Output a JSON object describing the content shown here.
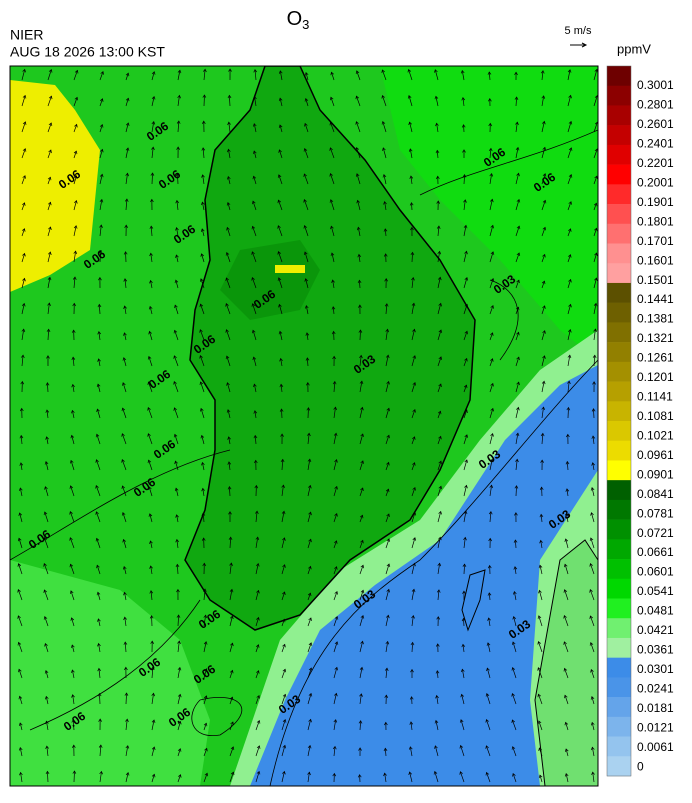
{
  "header": {
    "title": {
      "base": "O",
      "sub": "3"
    },
    "agency": "NIER",
    "datetime": "AUG 18 2026 13:00 KST",
    "wind_scale": "5 m/s",
    "unit": "ppmV"
  },
  "colorbar": [
    {
      "label": "0.3001",
      "color": "#6e0000"
    },
    {
      "label": "0.2801",
      "color": "#8c0000"
    },
    {
      "label": "0.2601",
      "color": "#a80000"
    },
    {
      "label": "0.2401",
      "color": "#c40000"
    },
    {
      "label": "0.2201",
      "color": "#e00000"
    },
    {
      "label": "0.2001",
      "color": "#ff0000"
    },
    {
      "label": "0.1901",
      "color": "#ff2a2a"
    },
    {
      "label": "0.1801",
      "color": "#ff5050"
    },
    {
      "label": "0.1701",
      "color": "#ff7070"
    },
    {
      "label": "0.1601",
      "color": "#ff9090"
    },
    {
      "label": "0.1501",
      "color": "#ffa0a0"
    },
    {
      "label": "0.1441",
      "color": "#5c5000"
    },
    {
      "label": "0.1381",
      "color": "#6e6000"
    },
    {
      "label": "0.1321",
      "color": "#807000"
    },
    {
      "label": "0.1261",
      "color": "#928000"
    },
    {
      "label": "0.1201",
      "color": "#a49000"
    },
    {
      "label": "0.1141",
      "color": "#b6a000"
    },
    {
      "label": "0.1081",
      "color": "#c8b400"
    },
    {
      "label": "0.1021",
      "color": "#dac800"
    },
    {
      "label": "0.0961",
      "color": "#ecdc00"
    },
    {
      "label": "0.0901",
      "color": "#ffff00"
    },
    {
      "label": "0.0841",
      "color": "#006000"
    },
    {
      "label": "0.0781",
      "color": "#007800"
    },
    {
      "label": "0.0721",
      "color": "#009000"
    },
    {
      "label": "0.0661",
      "color": "#00a800"
    },
    {
      "label": "0.0601",
      "color": "#00c000"
    },
    {
      "label": "0.0541",
      "color": "#00d800"
    },
    {
      "label": "0.0481",
      "color": "#20f020"
    },
    {
      "label": "0.0421",
      "color": "#70f070"
    },
    {
      "label": "0.0361",
      "color": "#a0f0a0"
    },
    {
      "label": "0.0301",
      "color": "#3c8ce8"
    },
    {
      "label": "0.0241",
      "color": "#4a94e8"
    },
    {
      "label": "0.0181",
      "color": "#64a4ea"
    },
    {
      "label": "0.0121",
      "color": "#7cb4ec"
    },
    {
      "label": "0.0061",
      "color": "#94c4ee"
    },
    {
      "label": "0",
      "color": "#aad2f0"
    }
  ],
  "contour_labels": [
    "0.06",
    "0.06",
    "0.06",
    "0.06",
    "0.06",
    "0.06",
    "0.06",
    "0.06",
    "0.06",
    "0.06",
    "0.06",
    "0.06",
    "0.06",
    "0.06",
    "0.06",
    "0.06",
    "0.06",
    "0.06",
    "0.03",
    "0.03",
    "0.03",
    "0.03",
    "0.03",
    "0.03",
    "0.03"
  ]
}
